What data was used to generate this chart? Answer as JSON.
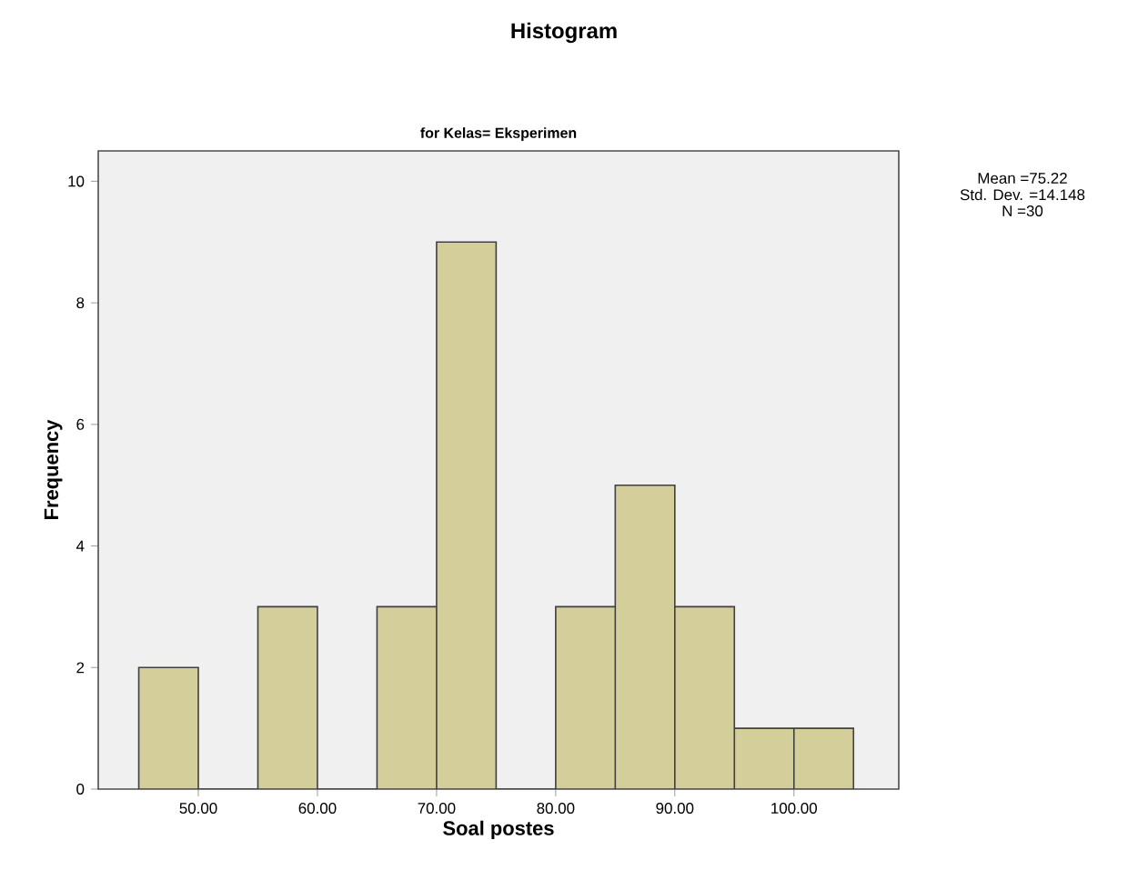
{
  "chart_data": {
    "type": "histogram",
    "title": "Histogram",
    "subtitle": "for Kelas= Eksperimen",
    "xlabel": "Soal postes",
    "ylabel": "Frequency",
    "bins": [
      45,
      50,
      55,
      60,
      65,
      70,
      75,
      80,
      85,
      90,
      95,
      100,
      105
    ],
    "values": [
      2,
      0,
      3,
      0,
      3,
      9,
      0,
      3,
      5,
      3,
      1,
      1
    ],
    "color": "#d3ce9a",
    "xlim": [
      41.6,
      108.8
    ],
    "ylim": [
      0,
      10.5
    ],
    "xticks": [
      {
        "value": 50,
        "label": "50.00"
      },
      {
        "value": 60,
        "label": "60.00"
      },
      {
        "value": 70,
        "label": "70.00"
      },
      {
        "value": 80,
        "label": "80.00"
      },
      {
        "value": 90,
        "label": "90.00"
      },
      {
        "value": 100,
        "label": "100.00"
      }
    ],
    "yticks": [
      0,
      2,
      4,
      6,
      8,
      10
    ],
    "annotations": [
      "Mean =75.22",
      "Std. Dev. =14.148",
      "N =30"
    ]
  }
}
